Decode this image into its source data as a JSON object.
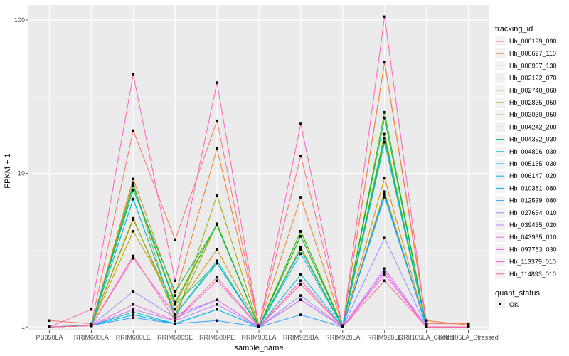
{
  "chart_data": {
    "type": "line",
    "xlabel": "sample_name",
    "ylabel": "FPKM + 1",
    "y_scale": "log10",
    "ylim": [
      0.95,
      125
    ],
    "y_ticks": [
      {
        "value": 1,
        "label": "1"
      },
      {
        "value": 10,
        "label": "10"
      },
      {
        "value": 100,
        "label": "100"
      }
    ],
    "categories": [
      "PB350LA",
      "RRIM600LA",
      "RRIM600LE",
      "RRIM600SE",
      "RRIM600PE",
      "RRIM901LA",
      "RRIM928BA",
      "RRIM928LA",
      "RRIM928LE",
      "RRII105LA_Control",
      "RRII105LA_Stressed"
    ],
    "grid": true,
    "panel_background": "#ebebeb",
    "legend": {
      "title": "tracking_id",
      "position": "right",
      "status_title": "quant_status",
      "status_label": "OK"
    },
    "series": [
      {
        "name": "Hb_000199_090",
        "color": "#F8766D",
        "values": [
          1.1,
          1.05,
          19,
          3.7,
          22,
          1.02,
          13,
          1.02,
          53,
          1.05,
          1.05
        ]
      },
      {
        "name": "Hb_000627_110",
        "color": "#EA8331",
        "values": [
          1.0,
          1.03,
          9.2,
          1.6,
          14.5,
          1.02,
          7.0,
          1.02,
          53,
          1.1,
          1.03
        ]
      },
      {
        "name": "Hb_000907_130",
        "color": "#D89000",
        "values": [
          1.0,
          1.02,
          5.0,
          1.3,
          3.2,
          1.0,
          4.2,
          1.0,
          9.3,
          1.0,
          1.0
        ]
      },
      {
        "name": "Hb_002122_070",
        "color": "#C09B00",
        "values": [
          1.0,
          1.02,
          4.2,
          1.4,
          4.7,
          1.0,
          3.3,
          1.0,
          7.6,
          1.0,
          1.0
        ]
      },
      {
        "name": "Hb_002740_060",
        "color": "#A3A500",
        "values": [
          1.0,
          1.02,
          8.7,
          1.1,
          7.2,
          1.0,
          3.9,
          1.0,
          18,
          1.0,
          1.0
        ]
      },
      {
        "name": "Hb_002835_050",
        "color": "#7CAE00",
        "values": [
          1.0,
          1.02,
          5.1,
          1.2,
          4.7,
          1.0,
          4.2,
          1.0,
          18,
          1.0,
          1.0
        ]
      },
      {
        "name": "Hb_003030_050",
        "color": "#39B600",
        "values": [
          1.0,
          1.02,
          8.3,
          1.45,
          4.7,
          1.0,
          4.2,
          1.0,
          25,
          1.0,
          1.0
        ]
      },
      {
        "name": "Hb_004242_200",
        "color": "#00BB4E",
        "values": [
          1.0,
          1.03,
          7.8,
          1.7,
          4.6,
          1.0,
          3.9,
          1.0,
          23,
          1.0,
          1.0
        ]
      },
      {
        "name": "Hb_004392_030",
        "color": "#00BF7D",
        "values": [
          1.0,
          1.02,
          8.3,
          1.4,
          2.6,
          1.0,
          3.2,
          1.0,
          17,
          1.0,
          1.0
        ]
      },
      {
        "name": "Hb_004896_030",
        "color": "#00C1A3",
        "values": [
          1.0,
          1.02,
          6.8,
          1.2,
          2.7,
          1.0,
          3.2,
          1.0,
          16,
          1.0,
          1.0
        ]
      },
      {
        "name": "Hb_005155_030",
        "color": "#00BFC4",
        "values": [
          1.0,
          1.02,
          1.25,
          1.05,
          1.3,
          1.0,
          2.2,
          1.0,
          16,
          1.0,
          1.0
        ]
      },
      {
        "name": "Hb_006147_020",
        "color": "#00BAE0",
        "values": [
          1.0,
          1.02,
          6.8,
          1.2,
          2.6,
          1.0,
          3.0,
          1.0,
          7.3,
          1.0,
          1.0
        ]
      },
      {
        "name": "Hb_010381_080",
        "color": "#00B0F6",
        "values": [
          1.0,
          1.02,
          1.2,
          1.05,
          1.3,
          1.0,
          1.5,
          1.0,
          7.3,
          1.0,
          1.0
        ]
      },
      {
        "name": "Hb_012539_080",
        "color": "#35A2FF",
        "values": [
          1.0,
          1.02,
          1.15,
          1.05,
          1.1,
          1.0,
          1.2,
          1.0,
          7.0,
          1.0,
          1.0
        ]
      },
      {
        "name": "Hb_027654_010",
        "color": "#9590FF",
        "values": [
          1.0,
          1.02,
          1.7,
          1.15,
          1.5,
          1.0,
          1.6,
          1.0,
          3.8,
          1.0,
          1.0
        ]
      },
      {
        "name": "Hb_039435_020",
        "color": "#C77CFF",
        "values": [
          1.0,
          1.02,
          1.3,
          1.1,
          1.4,
          1.0,
          1.5,
          1.0,
          2.4,
          1.0,
          1.0
        ]
      },
      {
        "name": "Hb_043935_010",
        "color": "#E76BF3",
        "values": [
          1.0,
          1.02,
          2.8,
          1.2,
          1.5,
          1.0,
          1.5,
          1.0,
          2.3,
          1.0,
          1.0
        ]
      },
      {
        "name": "Hb_097783_030",
        "color": "#FA62DB",
        "values": [
          1.0,
          1.02,
          1.4,
          1.1,
          2.0,
          1.0,
          2.0,
          1.0,
          2.2,
          1.0,
          1.0
        ]
      },
      {
        "name": "Hb_113379_010",
        "color": "#FF62BC",
        "values": [
          1.0,
          1.3,
          44,
          2.0,
          39,
          1.0,
          21,
          1.0,
          105,
          1.0,
          1.0
        ]
      },
      {
        "name": "Hb_114893_010",
        "color": "#FF6C91",
        "values": [
          1.0,
          1.02,
          2.9,
          1.1,
          2.1,
          1.0,
          1.9,
          1.0,
          2.0,
          1.0,
          1.0
        ]
      }
    ]
  }
}
